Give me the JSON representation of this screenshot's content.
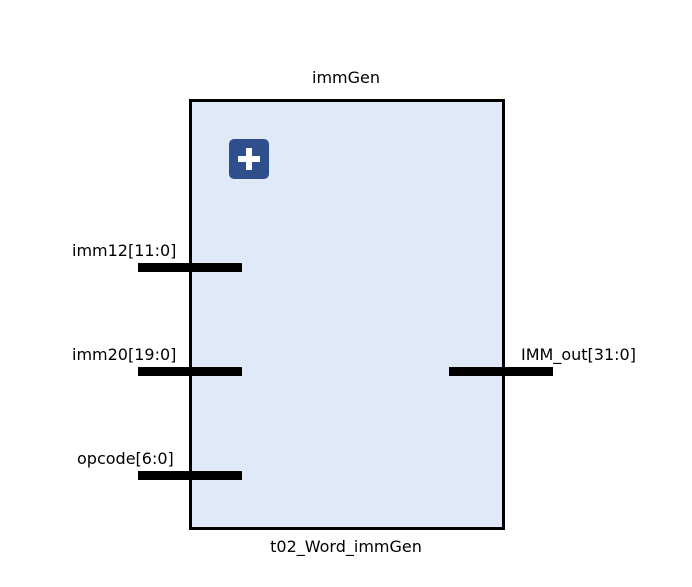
{
  "block": {
    "instance_name": "immGen",
    "module_name": "t02_Word_immGen",
    "fill_color": "#dfe9f8",
    "border_color": "#000000"
  },
  "expand_button": {
    "icon": "plus-icon",
    "color": "#2f4f8c"
  },
  "ports": {
    "inputs": [
      {
        "label": "imm12[11:0]"
      },
      {
        "label": "imm20[19:0]"
      },
      {
        "label": "opcode[6:0]"
      }
    ],
    "outputs": [
      {
        "label": "IMM_out[31:0]"
      }
    ]
  }
}
